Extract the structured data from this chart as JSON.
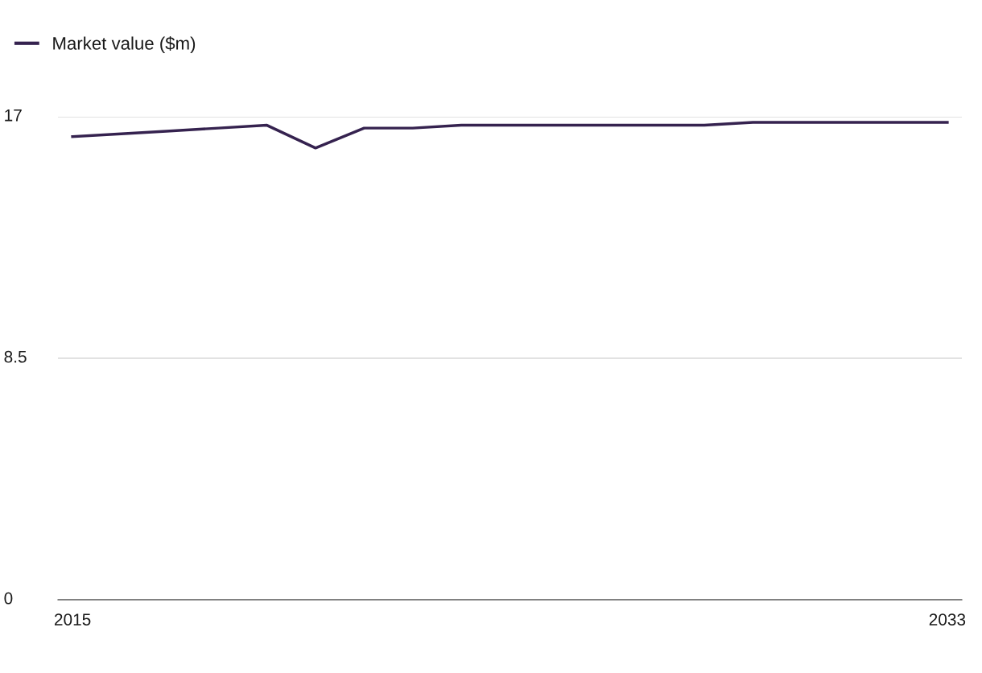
{
  "chart_data": {
    "type": "line",
    "x": [
      2015,
      2016,
      2017,
      2018,
      2019,
      2020,
      2021,
      2022,
      2023,
      2024,
      2025,
      2026,
      2027,
      2028,
      2029,
      2030,
      2031,
      2032,
      2033
    ],
    "series": [
      {
        "name": "Market value ($m)",
        "color": "#35224f",
        "values": [
          16.3,
          16.4,
          16.5,
          16.6,
          16.7,
          15.9,
          16.6,
          16.6,
          16.7,
          16.7,
          16.7,
          16.7,
          16.7,
          16.7,
          16.8,
          16.8,
          16.8,
          16.8,
          16.8
        ]
      }
    ],
    "xlim": [
      2014.7,
      2033.3
    ],
    "xticks": [
      2015,
      2033
    ],
    "ylim": [
      0,
      17
    ],
    "yticks": [
      0,
      8.5,
      17
    ],
    "grid": "y",
    "legend": "top left",
    "marker": "none",
    "line_style": "solid"
  }
}
